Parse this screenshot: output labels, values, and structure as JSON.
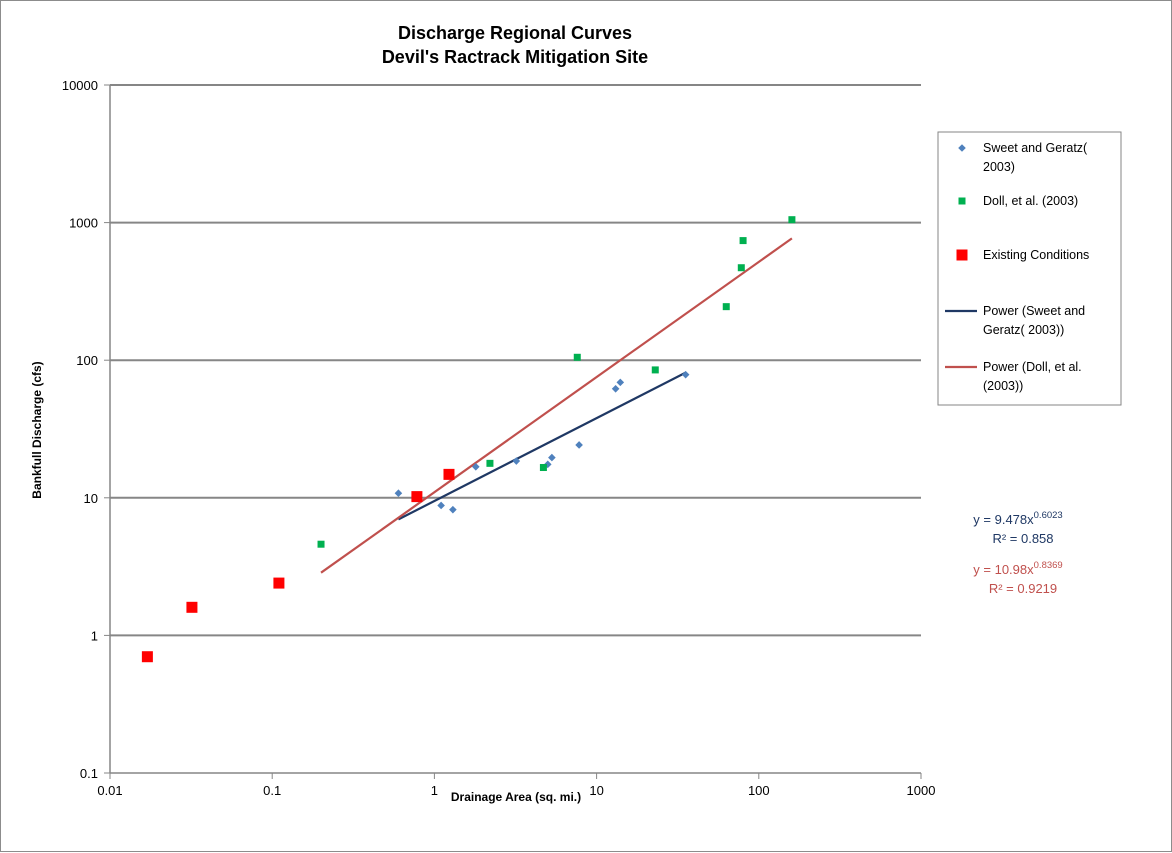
{
  "chart_data": {
    "type": "scatter",
    "title": [
      "Discharge Regional Curves",
      "Devil's Ractrack Mitigation Site"
    ],
    "xlabel": "Drainage Area (sq. mi.)",
    "ylabel": "Bankfull Discharge  (cfs)",
    "xscale": "log",
    "yscale": "log",
    "xlim": [
      0.01,
      1000
    ],
    "ylim": [
      0.1,
      10000
    ],
    "x_ticks": [
      "0.01",
      "0.1",
      "1",
      "10",
      "100",
      "1000"
    ],
    "y_ticks": [
      "0.1",
      "1",
      "10",
      "100",
      "1000",
      "10000"
    ],
    "grid": "horizontal major",
    "legend_position": "right",
    "series": [
      {
        "name": "Sweet and Geratz( 2003)",
        "marker": "diamond",
        "color": "#4f81bd",
        "points": [
          [
            0.6,
            10.8
          ],
          [
            1.1,
            8.8
          ],
          [
            1.3,
            8.2
          ],
          [
            1.8,
            16.8
          ],
          [
            3.2,
            18.5
          ],
          [
            5.0,
            17.5
          ],
          [
            5.3,
            19.6
          ],
          [
            7.8,
            24.2
          ],
          [
            13.1,
            62.0
          ],
          [
            14.0,
            69.0
          ],
          [
            35.4,
            78.5
          ]
        ]
      },
      {
        "name": "Doll, et al. (2003)",
        "marker": "square",
        "color": "#00b050",
        "points": [
          [
            0.2,
            4.6
          ],
          [
            2.2,
            17.8
          ],
          [
            4.7,
            16.6
          ],
          [
            7.6,
            105
          ],
          [
            23.0,
            85
          ],
          [
            63.0,
            245
          ],
          [
            78.0,
            470
          ],
          [
            80.0,
            740
          ],
          [
            160.0,
            1050
          ]
        ]
      },
      {
        "name": "Existing Conditions",
        "marker": "square-large",
        "color": "#ff0000",
        "points": [
          [
            0.017,
            0.7
          ],
          [
            0.032,
            1.6
          ],
          [
            0.11,
            2.4
          ],
          [
            0.78,
            10.2
          ],
          [
            1.23,
            14.8
          ]
        ]
      }
    ],
    "trendlines": [
      {
        "name": "Power (Sweet and Geratz( 2003))",
        "color": "#1f3864",
        "a": 9.478,
        "b": 0.6023,
        "x_range": [
          0.6,
          35.4
        ],
        "equation_base": "y = 9.478x",
        "equation_exp": "0.6023",
        "r2": "R² = 0.858"
      },
      {
        "name": "Power (Doll, et al. (2003))",
        "color": "#c0504d",
        "a": 10.98,
        "b": 0.8369,
        "x_range": [
          0.2,
          160
        ],
        "equation_base": "y = 10.98x",
        "equation_exp": "0.8369",
        "r2": "R² = 0.9219"
      }
    ],
    "legend": [
      {
        "lines": [
          "Sweet and Geratz(",
          "2003)"
        ]
      },
      {
        "lines": [
          "Doll, et al. (2003)"
        ]
      },
      {
        "lines": [
          "Existing Conditions"
        ]
      },
      {
        "lines": [
          "Power (Sweet and",
          "Geratz( 2003))"
        ]
      },
      {
        "lines": [
          "Power (Doll, et al.",
          "(2003))"
        ]
      }
    ],
    "colors": {
      "sweet_label": "#1f3864",
      "doll_label": "#c0504d"
    }
  }
}
